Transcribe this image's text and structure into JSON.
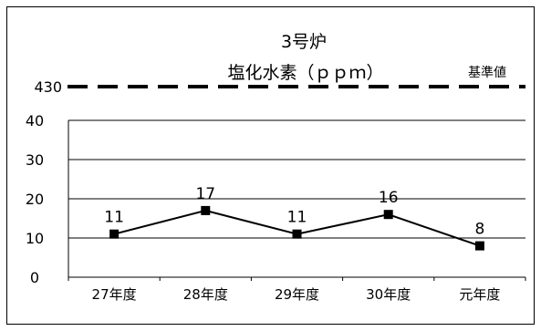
{
  "chart_data": {
    "type": "line",
    "title": "3号炉",
    "subtitle": "塩化水素（ｐｐｍ）",
    "reference": {
      "label": "基準値",
      "value_label": "430",
      "style": "dashed"
    },
    "categories": [
      "27年度",
      "28年度",
      "29年度",
      "30年度",
      "元年度"
    ],
    "series": [
      {
        "values": [
          11,
          17,
          11,
          16,
          8
        ],
        "color": "#000000",
        "marker": "square"
      }
    ],
    "y_ticks": [
      "0",
      "10",
      "20",
      "30",
      "40"
    ],
    "ylim": [
      0,
      40
    ],
    "grid": true,
    "legend": "none"
  }
}
